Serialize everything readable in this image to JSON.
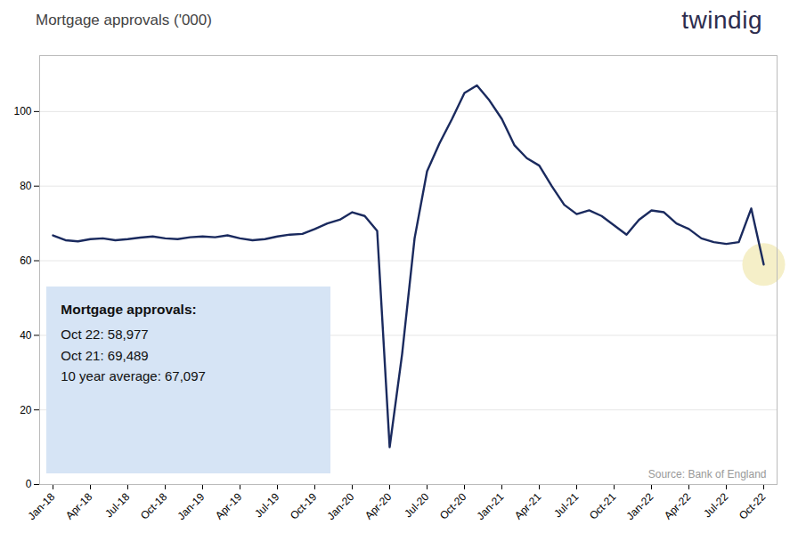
{
  "chart_data": {
    "type": "line",
    "title": "Mortgage approvals ('000)",
    "categories": [
      "Jan-18",
      null,
      null,
      "Apr-18",
      null,
      null,
      "Jul-18",
      null,
      null,
      "Oct-18",
      null,
      null,
      "Jan-19",
      null,
      null,
      "Apr-19",
      null,
      null,
      "Jul-19",
      null,
      null,
      "Oct-19",
      null,
      null,
      "Jan-20",
      null,
      null,
      "Apr-20",
      null,
      null,
      "Jul-20",
      null,
      null,
      "Oct-20",
      null,
      null,
      "Jan-21",
      null,
      null,
      "Apr-21",
      null,
      null,
      "Jul-21",
      null,
      null,
      "Oct-21",
      null,
      null,
      "Jan-22",
      null,
      null,
      "Apr-22",
      null,
      null,
      "Jul-22",
      null,
      null,
      "Oct-22"
    ],
    "values": [
      66.8,
      65.5,
      65.2,
      65.8,
      66.0,
      65.5,
      65.8,
      66.2,
      66.5,
      66.0,
      65.8,
      66.3,
      66.5,
      66.3,
      66.8,
      66.0,
      65.5,
      65.8,
      66.5,
      67.0,
      67.2,
      68.5,
      70.0,
      71.0,
      73.0,
      72.0,
      68.0,
      10.0,
      35.0,
      66.0,
      84.0,
      91.5,
      98.0,
      105.0,
      107.0,
      103.0,
      98.0,
      91.0,
      87.5,
      85.5,
      80.0,
      75.0,
      72.5,
      73.5,
      72.0,
      69.5,
      67.0,
      71.0,
      73.5,
      73.0,
      70.0,
      68.5,
      66.0,
      65.0,
      64.5,
      65.0,
      74.0,
      59.0
    ],
    "color": "#1a2a5e",
    "ylim": [
      0,
      115
    ],
    "yticks": [
      0,
      20,
      40,
      60,
      80,
      100
    ],
    "grid": true,
    "annotations": [
      "Mortgage approvals:",
      "Oct 22: 58,977",
      "Oct 21: 69,489",
      "10 year average: 67,097"
    ],
    "source": "Source: Bank of England",
    "logo": "twindig"
  }
}
